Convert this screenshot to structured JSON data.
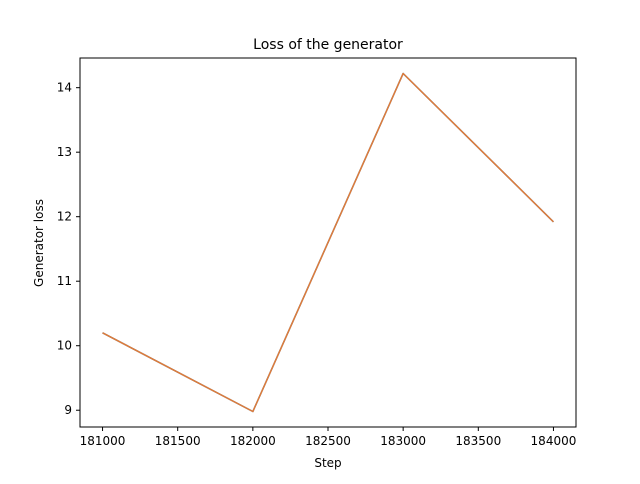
{
  "chart_data": {
    "type": "line",
    "title": "Loss of the generator",
    "xlabel": "Step",
    "ylabel": "Generator loss",
    "xlim": [
      180850,
      184150
    ],
    "ylim": [
      8.74,
      14.46
    ],
    "xticks": [
      181000,
      181500,
      182000,
      182500,
      183000,
      183500,
      184000
    ],
    "yticks": [
      9,
      10,
      11,
      12,
      13,
      14
    ],
    "grid": false,
    "legend": "none",
    "colors": {
      "line": "#e07b39",
      "line_under": "#1f77b4",
      "axes": "#000000"
    },
    "series": [
      {
        "x": [
          181000,
          182000,
          183000,
          184000
        ],
        "y": [
          10.2,
          8.98,
          14.22,
          11.92
        ]
      }
    ]
  }
}
